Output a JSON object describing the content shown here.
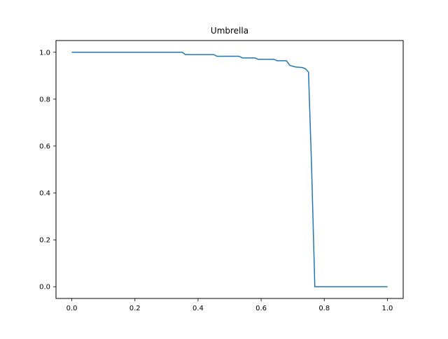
{
  "chart_data": {
    "type": "line",
    "title": "Umbrella",
    "xlabel": "",
    "ylabel": "",
    "xlim": [
      -0.05,
      1.05
    ],
    "ylim": [
      -0.05,
      1.05
    ],
    "x_ticks": [
      0.0,
      0.2,
      0.4,
      0.6,
      0.8,
      1.0
    ],
    "x_tick_labels": [
      "0.0",
      "0.2",
      "0.4",
      "0.6",
      "0.8",
      "1.0"
    ],
    "y_ticks": [
      0.0,
      0.2,
      0.4,
      0.6,
      0.8,
      1.0
    ],
    "y_tick_labels": [
      "0.0",
      "0.2",
      "0.4",
      "0.6",
      "0.8",
      "1.0"
    ],
    "grid": false,
    "series": [
      {
        "color": "#1f77b4",
        "x": [
          0.0,
          0.35,
          0.36,
          0.45,
          0.46,
          0.53,
          0.54,
          0.58,
          0.59,
          0.64,
          0.65,
          0.68,
          0.69,
          0.7,
          0.71,
          0.73,
          0.74,
          0.75,
          0.76,
          0.77,
          0.8,
          0.9,
          1.0
        ],
        "y": [
          1.0,
          1.0,
          0.99,
          0.99,
          0.983,
          0.983,
          0.976,
          0.976,
          0.97,
          0.97,
          0.964,
          0.964,
          0.945,
          0.94,
          0.937,
          0.935,
          0.93,
          0.915,
          0.5,
          0.0,
          0.0,
          0.0,
          0.0
        ]
      }
    ]
  }
}
